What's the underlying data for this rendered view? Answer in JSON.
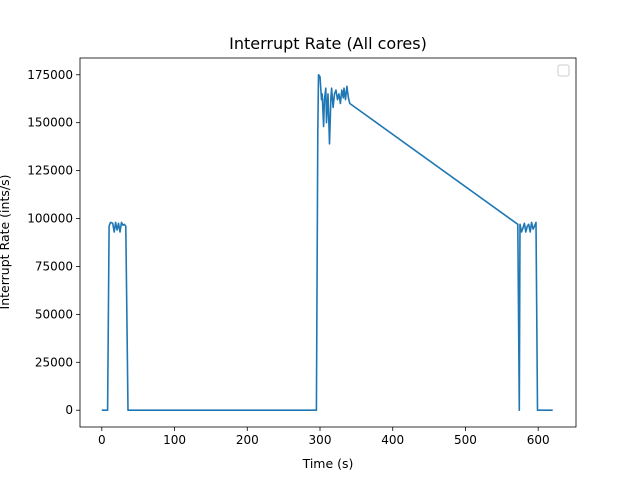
{
  "chart_data": {
    "type": "line",
    "title": "Interrupt Rate (All cores)",
    "xlabel": "Time (s)",
    "ylabel": "Interrupt Rate (ints/s)",
    "xlim": [
      -30,
      652
    ],
    "ylim": [
      -8750,
      183750
    ],
    "x_ticks": [
      0,
      100,
      200,
      300,
      400,
      500,
      600
    ],
    "y_ticks": [
      0,
      25000,
      50000,
      75000,
      100000,
      125000,
      150000,
      175000
    ],
    "x_tick_labels": [
      "0",
      "100",
      "200",
      "300",
      "400",
      "500",
      "600"
    ],
    "y_tick_labels": [
      "0",
      "25000",
      "50000",
      "75000",
      "100000",
      "125000",
      "150000",
      "175000"
    ],
    "grid": false,
    "legend": {
      "placement": "top-right",
      "entries": []
    },
    "line_color": "#1f77b4",
    "series": [
      {
        "x": [
          0,
          8,
          10,
          12,
          15,
          17,
          19,
          21,
          23,
          25,
          27,
          29,
          31,
          33,
          36,
          80,
          150,
          250,
          295,
          297,
          298,
          300,
          302,
          303,
          305,
          306,
          308,
          309,
          311,
          313,
          315,
          316,
          318,
          320,
          322,
          324,
          326,
          328,
          330,
          332,
          333,
          335,
          337,
          339,
          341,
          572,
          574,
          575,
          577,
          579,
          581,
          583,
          585,
          587,
          589,
          591,
          593,
          595,
          597,
          599,
          601,
          605,
          620
        ],
        "y": [
          0,
          0,
          96000,
          98000,
          97500,
          93000,
          98000,
          94000,
          97500,
          93000,
          98000,
          96500,
          97000,
          96000,
          0,
          0,
          0,
          0,
          0,
          145000,
          175000,
          174000,
          162000,
          165000,
          148000,
          162000,
          168000,
          150000,
          165000,
          139000,
          163000,
          168000,
          158000,
          165000,
          167000,
          162000,
          165000,
          160000,
          167000,
          163000,
          168000,
          162000,
          169000,
          163000,
          160000,
          97000,
          0,
          97000,
          93000,
          95000,
          97500,
          93000,
          96000,
          97000,
          93000,
          98000,
          94500,
          96000,
          98000,
          0,
          0,
          0,
          0
        ]
      }
    ]
  }
}
